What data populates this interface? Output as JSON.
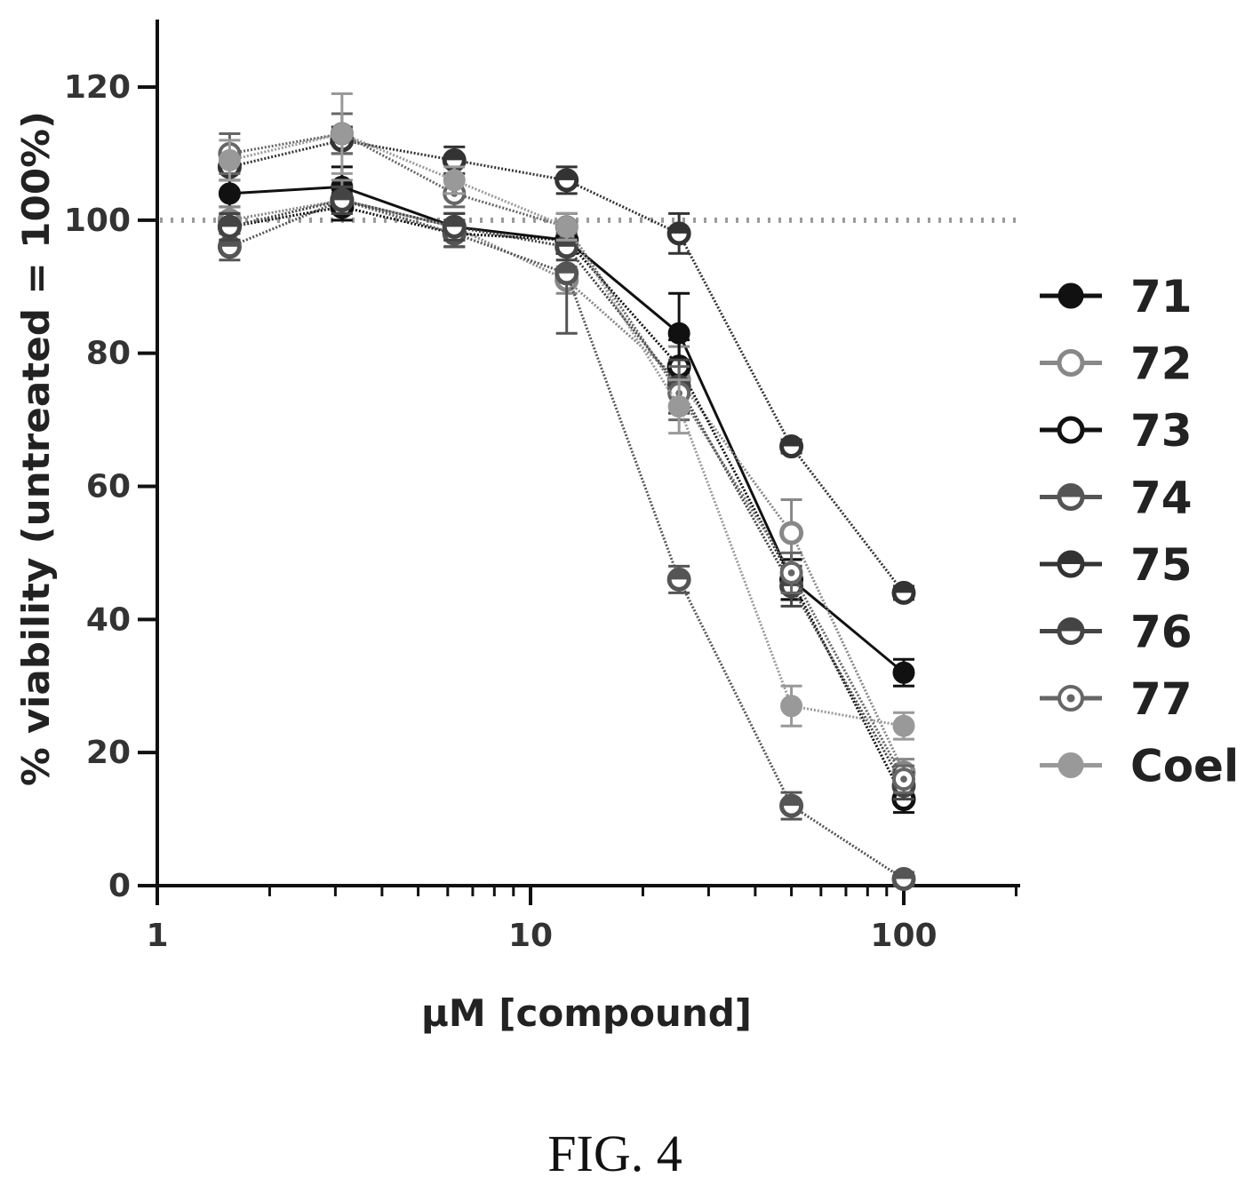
{
  "figure_caption": "FIG. 4",
  "chart_data": {
    "type": "line",
    "title": "",
    "xlabel": "μM [compound]",
    "ylabel": "% viability (untreated = 100%)",
    "x_scale": "log",
    "xlim": [
      1,
      200
    ],
    "ylim": [
      0,
      130
    ],
    "x_ticks": [
      1,
      10,
      100
    ],
    "x_tick_labels": [
      "1",
      "10",
      "100"
    ],
    "y_ticks": [
      0,
      20,
      40,
      60,
      80,
      100,
      120
    ],
    "y_tick_labels": [
      "0",
      "20",
      "40",
      "60",
      "80",
      "100",
      "120"
    ],
    "reference_line": {
      "y": 100,
      "style": "dotted"
    },
    "legend_position": "right",
    "x": [
      1.5625,
      3.125,
      6.25,
      12.5,
      25,
      50,
      100
    ],
    "series": [
      {
        "name": "71",
        "color": "#111111",
        "marker": "filled-circle",
        "values": [
          104,
          105,
          99,
          97,
          83,
          46,
          32
        ],
        "errors": [
          2,
          3,
          2,
          2,
          6,
          3,
          2
        ]
      },
      {
        "name": "72",
        "color": "#888888",
        "marker": "open-circle",
        "values": [
          100,
          103,
          99,
          91,
          76,
          53,
          17
        ],
        "errors": [
          2,
          3,
          2,
          2,
          5,
          5,
          2
        ]
      },
      {
        "name": "73",
        "color": "#111111",
        "marker": "open-circle",
        "values": [
          99,
          102,
          98,
          97,
          78,
          46,
          13
        ],
        "errors": [
          2,
          2,
          2,
          2,
          4,
          3,
          2
        ]
      },
      {
        "name": "74",
        "color": "#555555",
        "marker": "half-circle",
        "values": [
          96,
          103,
          98,
          92,
          46,
          12,
          1
        ],
        "errors": [
          2,
          2,
          2,
          9,
          2,
          2,
          1
        ]
      },
      {
        "name": "75",
        "color": "#333333",
        "marker": "half-circle",
        "values": [
          108,
          112,
          109,
          106,
          98,
          66,
          44
        ],
        "errors": [
          2,
          2,
          2,
          2,
          3,
          1,
          1
        ]
      },
      {
        "name": "76",
        "color": "#444444",
        "marker": "half-circle",
        "values": [
          99,
          103,
          99,
          96,
          75,
          45,
          15
        ],
        "errors": [
          2,
          2,
          2,
          2,
          4,
          3,
          2
        ]
      },
      {
        "name": "77",
        "color": "#666666",
        "marker": "dot-circle",
        "values": [
          110,
          113,
          104,
          99,
          74,
          47,
          16
        ],
        "errors": [
          3,
          3,
          2,
          2,
          4,
          3,
          2
        ]
      },
      {
        "name": "Coel",
        "color": "#999999",
        "marker": "filled-circle",
        "values": [
          109,
          113,
          106,
          99,
          72,
          27,
          24
        ],
        "errors": [
          3,
          6,
          2,
          2,
          4,
          3,
          2
        ]
      }
    ]
  }
}
